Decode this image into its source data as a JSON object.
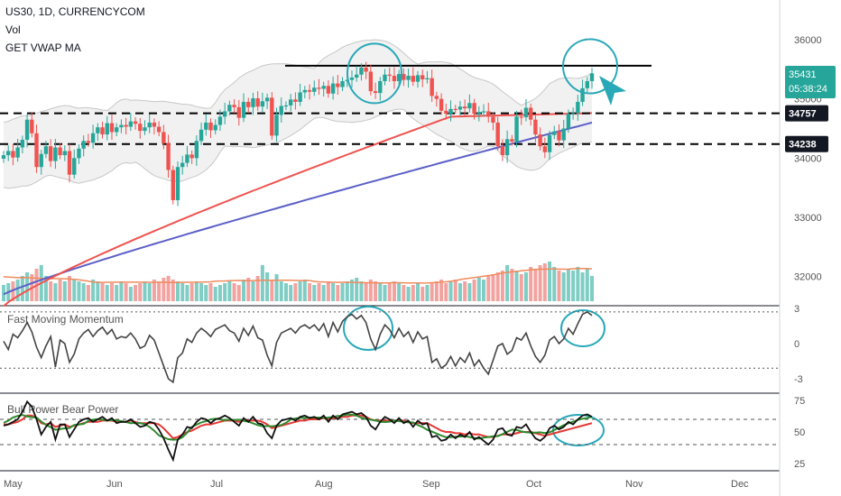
{
  "header": {
    "symbol": "US30, 1D, CURRENCYCOM",
    "vol_label": "Vol",
    "vwap_label": "GET VWAP MA"
  },
  "colors": {
    "up": "#26a69a",
    "down": "#ef5350",
    "vol_up": "#7fcdc4",
    "vol_down": "#f2a3a0",
    "ma_red": "#ef5350",
    "ma_blue": "#5b5fc7",
    "bands": "#c7c7c7",
    "band_fill": "#f1f1f1",
    "vol_ma": "#f08a5d",
    "annotation": "#29a8b8",
    "momentum_line": "#444444",
    "bull_line": "#111111",
    "bear_green": "#2e8b2e",
    "bear_red": "#e53935",
    "price_tag": "#131722",
    "last_tag": "#26a69a"
  },
  "price_axis": {
    "ticks": [
      "36000",
      "35000",
      "34000",
      "33000",
      "32000"
    ],
    "last_price": "35431",
    "countdown": "05:38:24",
    "level_high": "34757",
    "level_low": "34238"
  },
  "momentum_panel": {
    "title": "Fast Moving Momentum",
    "ticks": [
      "3",
      "0",
      "-3"
    ]
  },
  "power_panel": {
    "title": "Bull Power Bear Power",
    "ticks": [
      "75",
      "50",
      "25"
    ]
  },
  "time_axis": {
    "labels": [
      "May",
      "Jun",
      "Jul",
      "Aug",
      "Sep",
      "Oct",
      "Nov",
      "Dec"
    ]
  },
  "chart_data": {
    "type": "candlestick",
    "title": "US30, 1D, CURRENCYCOM",
    "y_range": [
      31600,
      36500
    ],
    "horizontal_levels": [
      35430,
      34757,
      34238
    ],
    "closes": [
      34050,
      34120,
      34010,
      34180,
      34310,
      34650,
      34420,
      33850,
      34070,
      34200,
      33950,
      34180,
      34050,
      34120,
      33720,
      34000,
      34160,
      34290,
      34260,
      34420,
      34520,
      34400,
      34590,
      34440,
      34520,
      34560,
      34530,
      34620,
      34580,
      34460,
      34520,
      34600,
      34530,
      34440,
      34250,
      33800,
      33290,
      33850,
      33920,
      34060,
      34000,
      34290,
      34480,
      34600,
      34470,
      34560,
      34700,
      34790,
      34900,
      34860,
      34680,
      34950,
      34860,
      35010,
      34870,
      34960,
      35020,
      34380,
      34730,
      34880,
      34890,
      34990,
      34950,
      35110,
      35150,
      35120,
      35190,
      35170,
      35220,
      35090,
      35260,
      35200,
      35300,
      35320,
      35360,
      35410,
      35530,
      35460,
      35130,
      35100,
      35300,
      35410,
      35390,
      35300,
      35420,
      35320,
      35390,
      35290,
      35400,
      35330,
      35350,
      35050,
      35000,
      34800,
      34750,
      34830,
      34820,
      34870,
      34840,
      34930,
      34750,
      34780,
      34790,
      34700,
      34600,
      34200,
      34050,
      34320,
      34280,
      34700,
      34690,
      34850,
      34650,
      34400,
      34200,
      34100,
      34390,
      34450,
      34300,
      34500,
      34750,
      34760,
      34950,
      35180,
      35300,
      35431
    ],
    "opens": [
      33990,
      34050,
      34120,
      34010,
      34180,
      34310,
      34650,
      34420,
      33850,
      34070,
      34200,
      33950,
      34180,
      34050,
      34120,
      33720,
      34000,
      34160,
      34290,
      34260,
      34420,
      34520,
      34400,
      34590,
      34440,
      34520,
      34560,
      34530,
      34620,
      34580,
      34460,
      34520,
      34600,
      34530,
      34440,
      34250,
      33800,
      33290,
      33850,
      33920,
      34060,
      34000,
      34290,
      34480,
      34600,
      34470,
      34560,
      34700,
      34790,
      34900,
      34860,
      34680,
      34950,
      34860,
      35010,
      34870,
      34960,
      35020,
      34380,
      34730,
      34880,
      34890,
      34990,
      34950,
      35110,
      35150,
      35120,
      35190,
      35170,
      35220,
      35090,
      35260,
      35200,
      35300,
      35320,
      35360,
      35410,
      35530,
      35460,
      35130,
      35100,
      35300,
      35410,
      35390,
      35300,
      35420,
      35320,
      35390,
      35290,
      35400,
      35330,
      35350,
      35050,
      35000,
      34800,
      34750,
      34830,
      34820,
      34870,
      34840,
      34930,
      34750,
      34780,
      34790,
      34700,
      34600,
      34200,
      34050,
      34320,
      34280,
      34700,
      34690,
      34850,
      34650,
      34400,
      34200,
      34100,
      34390,
      34450,
      34300,
      34500,
      34750,
      34760,
      34950,
      35180,
      35300
    ],
    "volume_ratio": [
      0.45,
      0.5,
      0.55,
      0.6,
      0.7,
      0.8,
      0.75,
      0.9,
      1.0,
      0.7,
      0.55,
      0.5,
      0.6,
      0.55,
      0.7,
      0.6,
      0.55,
      0.5,
      0.45,
      0.6,
      0.55,
      0.5,
      0.45,
      0.5,
      0.45,
      0.55,
      0.5,
      0.4,
      0.45,
      0.5,
      0.55,
      0.5,
      0.6,
      0.55,
      0.65,
      0.7,
      0.6,
      0.55,
      0.5,
      0.45,
      0.5,
      0.55,
      0.5,
      0.45,
      0.5,
      0.4,
      0.45,
      0.5,
      0.55,
      0.5,
      0.45,
      0.6,
      0.65,
      0.55,
      0.7,
      1.0,
      0.8,
      0.6,
      0.75,
      0.55,
      0.5,
      0.45,
      0.5,
      0.55,
      0.6,
      0.5,
      0.45,
      0.5,
      0.45,
      0.55,
      0.5,
      0.45,
      0.5,
      0.55,
      0.6,
      0.65,
      0.55,
      0.5,
      0.6,
      0.55,
      0.5,
      0.45,
      0.5,
      0.55,
      0.5,
      0.45,
      0.4,
      0.45,
      0.5,
      0.4,
      0.45,
      0.5,
      0.55,
      0.6,
      0.5,
      0.55,
      0.6,
      0.5,
      0.55,
      0.5,
      0.6,
      0.65,
      0.6,
      0.7,
      0.75,
      0.8,
      0.85,
      1.0,
      0.9,
      0.85,
      0.75,
      0.8,
      0.95,
      0.9,
      1.0,
      1.05,
      1.1,
      0.95,
      0.85,
      0.8,
      0.9,
      0.85,
      0.95,
      0.8,
      0.9,
      0.7
    ],
    "series": [
      {
        "name": "Fast Moving Momentum",
        "values": [
          0.2,
          -0.5,
          0.8,
          0.5,
          1.1,
          1.8,
          1.0,
          -0.3,
          -1.2,
          -0.2,
          0.6,
          -2.0,
          0.3,
          0.0,
          -1.6,
          -0.9,
          0.4,
          0.9,
          1.2,
          0.6,
          1.1,
          1.4,
          0.8,
          1.2,
          0.4,
          0.6,
          0.5,
          0.9,
          0.4,
          -0.4,
          -0.2,
          0.7,
          0.3,
          -0.8,
          -1.9,
          -3.0,
          -3.3,
          -1.2,
          -0.8,
          0.4,
          0.1,
          0.9,
          1.3,
          1.0,
          0.6,
          1.2,
          1.4,
          1.6,
          1.1,
          0.9,
          0.2,
          1.3,
          0.7,
          1.5,
          0.5,
          0.3,
          -1.0,
          -1.9,
          0.1,
          0.9,
          1.1,
          1.3,
          0.9,
          1.4,
          1.6,
          1.3,
          1.6,
          1.1,
          1.7,
          0.6,
          1.8,
          1.0,
          1.9,
          2.3,
          2.5,
          2.1,
          2.4,
          1.8,
          0.4,
          -0.5,
          0.8,
          1.6,
          1.2,
          0.5,
          1.3,
          0.6,
          1.0,
          0.1,
          1.0,
          0.4,
          0.6,
          -1.6,
          -1.3,
          -2.1,
          -1.8,
          -1.1,
          -1.9,
          -1.2,
          -1.6,
          -0.8,
          -1.9,
          -1.4,
          -2.1,
          -2.6,
          -1.4,
          -0.2,
          0.0,
          -0.9,
          -0.6,
          0.5,
          0.3,
          0.9,
          -0.2,
          -1.1,
          -1.6,
          -1.0,
          0.3,
          0.6,
          0.0,
          0.4,
          1.3,
          0.8,
          1.7,
          2.5,
          2.7,
          2.4
        ]
      },
      {
        "name": "Bull Power",
        "values": [
          55,
          56,
          58,
          60,
          66,
          74,
          70,
          60,
          48,
          54,
          58,
          44,
          56,
          56,
          46,
          52,
          58,
          60,
          61,
          58,
          60,
          62,
          59,
          61,
          57,
          58,
          58,
          60,
          57,
          54,
          55,
          58,
          57,
          52,
          45,
          36,
          28,
          44,
          48,
          54,
          53,
          58,
          61,
          60,
          57,
          60,
          61,
          63,
          61,
          58,
          55,
          61,
          58,
          62,
          57,
          56,
          49,
          45,
          55,
          59,
          60,
          61,
          59,
          62,
          63,
          61,
          62,
          60,
          63,
          58,
          63,
          60,
          64,
          65,
          66,
          64,
          65,
          62,
          55,
          52,
          58,
          62,
          60,
          57,
          61,
          57,
          59,
          54,
          59,
          56,
          57,
          46,
          47,
          43,
          44,
          48,
          45,
          48,
          46,
          50,
          44,
          46,
          43,
          40,
          44,
          52,
          53,
          48,
          47,
          54,
          53,
          56,
          50,
          45,
          43,
          46,
          53,
          55,
          52,
          54,
          58,
          56,
          60,
          63,
          64,
          62
        ]
      },
      {
        "name": "Bear Power",
        "values": [
          56,
          56,
          57,
          58,
          60,
          63,
          63,
          61,
          57,
          56,
          57,
          54,
          55,
          56,
          54,
          55,
          56,
          57,
          58,
          58,
          58,
          59,
          59,
          59,
          58,
          58,
          58,
          59,
          58,
          57,
          57,
          57,
          57,
          56,
          53,
          49,
          45,
          46,
          48,
          50,
          51,
          53,
          55,
          56,
          56,
          57,
          58,
          59,
          59,
          59,
          58,
          59,
          59,
          59,
          59,
          58,
          56,
          53,
          54,
          55,
          56,
          57,
          58,
          59,
          59,
          60,
          60,
          60,
          61,
          60,
          61,
          61,
          62,
          62,
          63,
          63,
          63,
          62,
          60,
          59,
          59,
          59,
          59,
          59,
          59,
          59,
          58,
          57,
          57,
          57,
          57,
          55,
          53,
          51,
          50,
          50,
          49,
          49,
          48,
          49,
          48,
          48,
          47,
          46,
          46,
          47,
          48,
          48,
          48,
          49,
          50,
          50,
          50,
          49,
          48,
          47,
          48,
          49,
          50,
          51,
          52,
          53,
          54,
          55,
          56,
          57
        ]
      }
    ]
  }
}
